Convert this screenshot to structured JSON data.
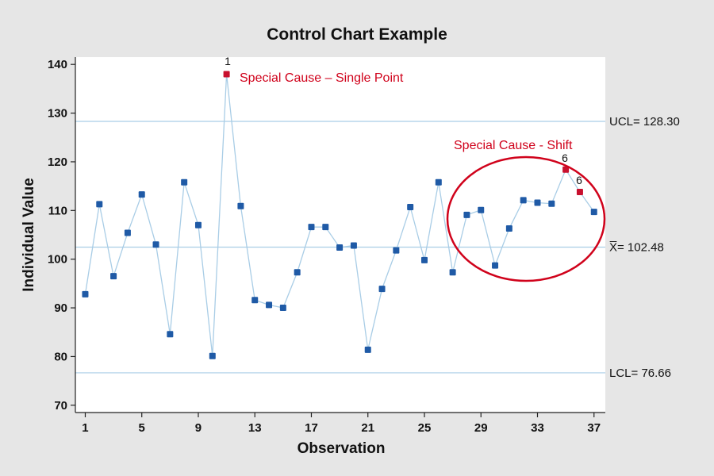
{
  "chart_data": {
    "type": "line",
    "title": "Control Chart Example",
    "xlabel": "Observation",
    "ylabel": "Individual Value",
    "xlim": [
      0.3,
      37.8
    ],
    "ylim": [
      68.5,
      141.5
    ],
    "x_ticks": [
      1,
      5,
      9,
      13,
      17,
      21,
      25,
      29,
      33,
      37
    ],
    "y_ticks": [
      70,
      80,
      90,
      100,
      110,
      120,
      130,
      140
    ],
    "series": [
      {
        "x": [
          1,
          2,
          3,
          4,
          5,
          6,
          7,
          8,
          9,
          10,
          11,
          12,
          13,
          14,
          15,
          16,
          17,
          18,
          19,
          20,
          21,
          22,
          23,
          24,
          25,
          26,
          27,
          28,
          29,
          30,
          31,
          32,
          33,
          34,
          35,
          36,
          37
        ],
        "values": [
          92.8,
          111.3,
          96.5,
          105.4,
          113.3,
          103.0,
          84.6,
          115.8,
          107.0,
          80.1,
          138.0,
          110.9,
          91.6,
          90.6,
          90.0,
          97.3,
          106.6,
          106.6,
          102.4,
          102.8,
          81.4,
          93.9,
          101.8,
          110.7,
          99.8,
          115.8,
          97.3,
          109.1,
          110.1,
          98.7,
          106.3,
          112.1,
          111.6,
          111.4,
          118.4,
          113.8,
          109.7
        ]
      }
    ],
    "special_points": [
      11,
      35,
      36
    ],
    "reference_lines": [
      {
        "value": 128.3,
        "label_prefix": "UCL= ",
        "label_value": "128.30"
      },
      {
        "value": 102.48,
        "label_prefix": "X̅= ",
        "label_value": "102.48"
      },
      {
        "value": 76.66,
        "label_prefix": "LCL= ",
        "label_value": "76.66"
      }
    ],
    "annotations": [
      {
        "text": "Special Cause – Single Point",
        "flag": "1"
      },
      {
        "text": "Special Cause - Shift",
        "flags": [
          "6",
          "6"
        ]
      }
    ],
    "colors": {
      "line": "#a9cde6",
      "marker": "#1f5aa6",
      "special": "#c8102e",
      "annotation": "#d0021b",
      "ref_line": "#a9cde6",
      "plot_bg": "#ffffff",
      "page_bg": "#e6e6e6"
    },
    "grid": false,
    "legend": "none"
  }
}
